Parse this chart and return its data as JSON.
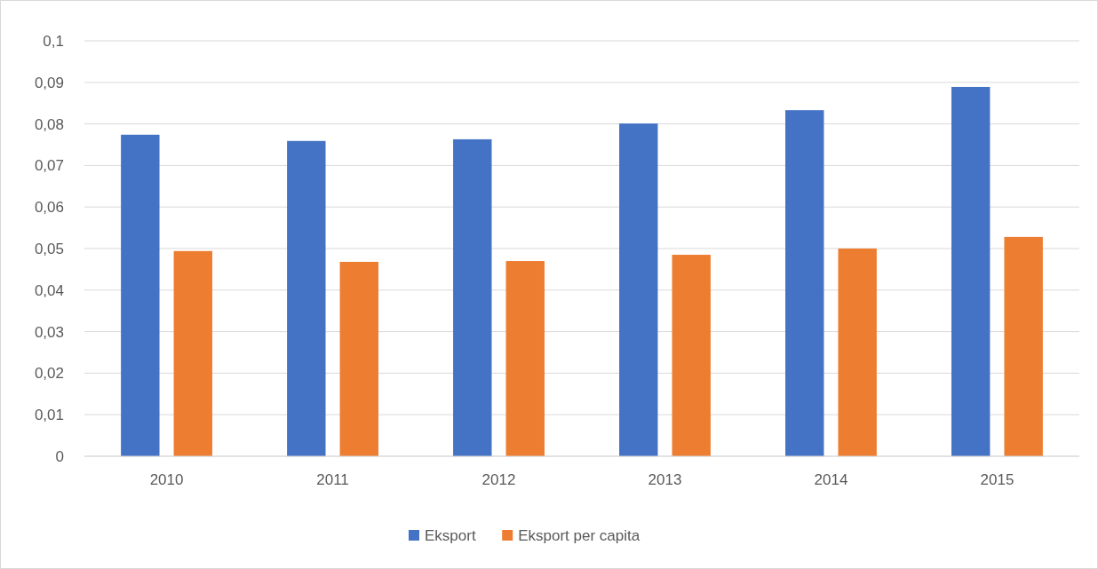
{
  "chart_data": {
    "type": "bar",
    "categories": [
      "2010",
      "2011",
      "2012",
      "2013",
      "2014",
      "2015"
    ],
    "series": [
      {
        "name": "Eksport",
        "color": "#4472c4",
        "values": [
          0.0774,
          0.0759,
          0.0763,
          0.0801,
          0.0833,
          0.0889
        ]
      },
      {
        "name": "Eksport per capita",
        "color": "#ed7d31",
        "values": [
          0.0494,
          0.0468,
          0.047,
          0.0485,
          0.05,
          0.0528
        ]
      }
    ],
    "ylim": [
      0,
      0.1
    ],
    "yticks": [
      0,
      {
        "value": 0.01,
        "label": "0,01"
      },
      {
        "value": 0.02,
        "label": "0,02"
      },
      {
        "value": 0.03,
        "label": "0,03"
      },
      {
        "value": 0.04,
        "label": "0,04"
      },
      {
        "value": 0.05,
        "label": "0,05"
      },
      {
        "value": 0.06,
        "label": "0,06"
      },
      {
        "value": 0.07,
        "label": "0,07"
      },
      {
        "value": 0.08,
        "label": "0,08"
      },
      {
        "value": 0.09,
        "label": "0,09"
      },
      {
        "value": 0.1,
        "label": "0,1"
      }
    ],
    "grid": "y",
    "legend": "bottom"
  }
}
